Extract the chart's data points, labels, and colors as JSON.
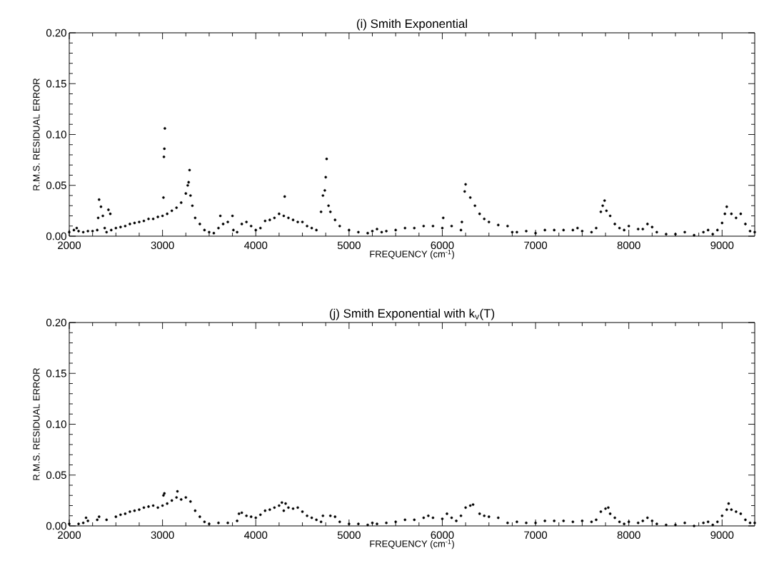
{
  "chart_data": [
    {
      "type": "scatter",
      "title": "(i) Smith Exponential",
      "xlabel": "FREQUENCY (cm$^{-1}$)",
      "ylabel": "R.M.S. RESIDUAL ERROR",
      "tick_labels": "xy",
      "xlim": [
        2000,
        9350
      ],
      "ylim": [
        0,
        0.2
      ],
      "xticks": [
        2000,
        3000,
        4000,
        5000,
        6000,
        7000,
        8000,
        9000
      ],
      "yticks": [
        {
          "value": 0,
          "label": "0.00"
        },
        {
          "value": 0.05,
          "label": "0.05"
        },
        {
          "value": 0.1,
          "label": "0.10"
        },
        {
          "value": 0.15,
          "label": "0.15"
        },
        {
          "value": 0.2,
          "label": "0.20"
        }
      ],
      "series": [
        {
          "color": "#000000",
          "x": [
            2000,
            2050,
            2080,
            2100,
            2150,
            2200,
            2250,
            2300,
            2310,
            2320,
            2340,
            2360,
            2380,
            2400,
            2420,
            2440,
            2450,
            2500,
            2550,
            2600,
            2650,
            2700,
            2750,
            2800,
            2850,
            2900,
            2950,
            3000,
            3010,
            3015,
            3020,
            3025,
            3050,
            3100,
            3150,
            3200,
            3250,
            3270,
            3280,
            3290,
            3300,
            3320,
            3350,
            3400,
            3450,
            3500,
            3550,
            3600,
            3620,
            3650,
            3700,
            3750,
            3760,
            3800,
            3850,
            3900,
            3950,
            4000,
            4050,
            4100,
            4150,
            4200,
            4250,
            4300,
            4310,
            4350,
            4400,
            4450,
            4500,
            4550,
            4600,
            4650,
            4700,
            4720,
            4740,
            4750,
            4760,
            4780,
            4800,
            4850,
            4900,
            5000,
            5100,
            5200,
            5250,
            5300,
            5350,
            5400,
            5500,
            5600,
            5700,
            5800,
            5900,
            6000,
            6010,
            6100,
            6200,
            6210,
            6240,
            6250,
            6300,
            6350,
            6400,
            6450,
            6500,
            6600,
            6700,
            6750,
            6800,
            6900,
            7000,
            7100,
            7200,
            7300,
            7400,
            7450,
            7500,
            7600,
            7650,
            7700,
            7720,
            7740,
            7760,
            7800,
            7850,
            7900,
            7950,
            8000,
            8100,
            8150,
            8200,
            8250,
            8300,
            8400,
            8500,
            8600,
            8700,
            8800,
            8850,
            8900,
            8950,
            9000,
            9030,
            9050,
            9100,
            9150,
            9200,
            9250,
            9300,
            9350
          ],
          "values": [
            0.004,
            0.006,
            0.008,
            0.005,
            0.004,
            0.005,
            0.005,
            0.006,
            0.018,
            0.036,
            0.029,
            0.02,
            0.008,
            0.004,
            0.026,
            0.022,
            0.006,
            0.008,
            0.009,
            0.01,
            0.012,
            0.013,
            0.014,
            0.015,
            0.017,
            0.017,
            0.019,
            0.02,
            0.038,
            0.078,
            0.086,
            0.106,
            0.022,
            0.025,
            0.028,
            0.033,
            0.042,
            0.05,
            0.053,
            0.065,
            0.04,
            0.03,
            0.018,
            0.012,
            0.006,
            0.004,
            0.003,
            0.008,
            0.02,
            0.012,
            0.014,
            0.02,
            0.006,
            0.004,
            0.012,
            0.014,
            0.01,
            0.006,
            0.008,
            0.015,
            0.016,
            0.018,
            0.022,
            0.02,
            0.039,
            0.018,
            0.016,
            0.014,
            0.014,
            0.01,
            0.008,
            0.006,
            0.024,
            0.04,
            0.045,
            0.058,
            0.076,
            0.03,
            0.024,
            0.016,
            0.01,
            0.006,
            0.004,
            0.003,
            0.005,
            0.007,
            0.004,
            0.005,
            0.006,
            0.008,
            0.008,
            0.01,
            0.01,
            0.008,
            0.018,
            0.01,
            0.006,
            0.014,
            0.044,
            0.051,
            0.038,
            0.03,
            0.022,
            0.017,
            0.014,
            0.011,
            0.01,
            0.004,
            0.004,
            0.005,
            0.003,
            0.006,
            0.006,
            0.006,
            0.006,
            0.008,
            0.005,
            0.004,
            0.008,
            0.024,
            0.03,
            0.035,
            0.025,
            0.02,
            0.012,
            0.008,
            0.006,
            0.01,
            0.007,
            0.007,
            0.012,
            0.009,
            0.004,
            0.002,
            0.002,
            0.004,
            0.001,
            0.004,
            0.006,
            0.002,
            0.006,
            0.013,
            0.022,
            0.029,
            0.022,
            0.018,
            0.022,
            0.012,
            0.005,
            0.004
          ]
        }
      ]
    },
    {
      "type": "scatter",
      "title": "(j) Smith Exponential with k$_{v}$(T)",
      "xlabel": "FREQUENCY (cm$^{-1}$)",
      "ylabel": "R.M.S. RESIDUAL ERROR",
      "tick_labels": "xy",
      "xlim": [
        2000,
        9350
      ],
      "ylim": [
        0,
        0.2
      ],
      "xticks": [
        2000,
        3000,
        4000,
        5000,
        6000,
        7000,
        8000,
        9000
      ],
      "yticks": [
        {
          "value": 0,
          "label": "0.00"
        },
        {
          "value": 0.05,
          "label": "0.05"
        },
        {
          "value": 0.1,
          "label": "0.10"
        },
        {
          "value": 0.15,
          "label": "0.15"
        },
        {
          "value": 0.2,
          "label": "0.20"
        }
      ],
      "series": [
        {
          "color": "#000000",
          "x": [
            2000,
            2100,
            2150,
            2180,
            2200,
            2300,
            2320,
            2400,
            2500,
            2550,
            2600,
            2650,
            2700,
            2750,
            2800,
            2850,
            2900,
            2950,
            3000,
            3010,
            3020,
            3050,
            3100,
            3150,
            3160,
            3200,
            3250,
            3300,
            3350,
            3400,
            3450,
            3500,
            3600,
            3700,
            3800,
            3820,
            3850,
            3900,
            3950,
            4000,
            4050,
            4100,
            4150,
            4200,
            4250,
            4280,
            4300,
            4320,
            4350,
            4400,
            4450,
            4500,
            4550,
            4600,
            4650,
            4700,
            4720,
            4800,
            4850,
            4900,
            5000,
            5100,
            5200,
            5250,
            5300,
            5400,
            5500,
            5600,
            5700,
            5800,
            5850,
            5900,
            6000,
            6050,
            6100,
            6150,
            6200,
            6250,
            6300,
            6330,
            6400,
            6450,
            6500,
            6600,
            6700,
            6800,
            6900,
            7000,
            7100,
            7200,
            7300,
            7400,
            7500,
            7600,
            7650,
            7700,
            7750,
            7780,
            7800,
            7850,
            7900,
            7950,
            8000,
            8100,
            8150,
            8200,
            8250,
            8300,
            8400,
            8500,
            8600,
            8700,
            8800,
            8850,
            8900,
            8950,
            9000,
            9050,
            9070,
            9100,
            9150,
            9200,
            9250,
            9300,
            9350
          ],
          "values": [
            0.002,
            0.002,
            0.003,
            0.008,
            0.005,
            0.006,
            0.009,
            0.006,
            0.009,
            0.011,
            0.012,
            0.014,
            0.015,
            0.016,
            0.018,
            0.019,
            0.02,
            0.018,
            0.02,
            0.03,
            0.032,
            0.022,
            0.025,
            0.028,
            0.034,
            0.026,
            0.028,
            0.024,
            0.015,
            0.009,
            0.004,
            0.002,
            0.003,
            0.003,
            0.005,
            0.012,
            0.013,
            0.01,
            0.009,
            0.008,
            0.011,
            0.015,
            0.016,
            0.018,
            0.02,
            0.023,
            0.015,
            0.022,
            0.018,
            0.017,
            0.018,
            0.014,
            0.01,
            0.008,
            0.006,
            0.004,
            0.01,
            0.01,
            0.009,
            0.004,
            0.002,
            0.002,
            0.001,
            0.003,
            0.002,
            0.003,
            0.004,
            0.006,
            0.006,
            0.008,
            0.01,
            0.008,
            0.007,
            0.012,
            0.008,
            0.005,
            0.01,
            0.018,
            0.02,
            0.021,
            0.012,
            0.01,
            0.009,
            0.008,
            0.003,
            0.004,
            0.003,
            0.003,
            0.005,
            0.005,
            0.005,
            0.004,
            0.005,
            0.004,
            0.006,
            0.014,
            0.017,
            0.018,
            0.012,
            0.008,
            0.004,
            0.002,
            0.004,
            0.003,
            0.005,
            0.008,
            0.005,
            0.002,
            0.001,
            0.001,
            0.003,
            0.0,
            0.003,
            0.004,
            0.001,
            0.004,
            0.01,
            0.016,
            0.022,
            0.016,
            0.014,
            0.012,
            0.006,
            0.003,
            0.003
          ]
        }
      ]
    }
  ]
}
